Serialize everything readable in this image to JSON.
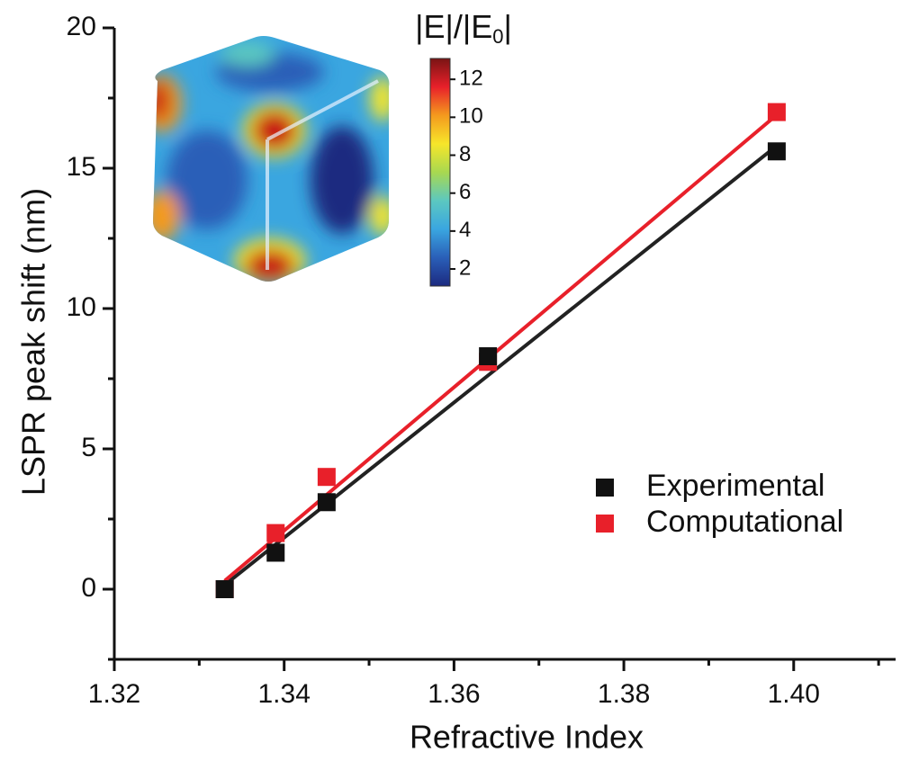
{
  "chart_data": {
    "type": "scatter",
    "xlabel": "Refractive Index",
    "ylabel": "LSPR peak shift (nm)",
    "xlim": [
      1.32,
      1.412
    ],
    "ylim": [
      -2.5,
      20
    ],
    "xticks": [
      1.32,
      1.34,
      1.36,
      1.38,
      {
        "value": 1.4,
        "label": "1.40"
      }
    ],
    "yticks": [
      0,
      5,
      10,
      15,
      20
    ],
    "xminorticks": [
      1.33,
      1.35,
      1.37,
      1.39,
      1.41
    ],
    "yminorticks": [
      -2.5,
      2.5,
      7.5,
      12.5,
      17.5
    ],
    "x": [
      1.333,
      1.339,
      1.345,
      1.364,
      1.398
    ],
    "series": [
      {
        "name": "Computational",
        "color": "#e8202a",
        "values": [
          0,
          2.0,
          4.0,
          8.1,
          17.0
        ]
      },
      {
        "name": "Experimental",
        "color": "#111111",
        "values": [
          0,
          1.3,
          3.1,
          8.3,
          15.6
        ]
      }
    ],
    "fits": [
      {
        "color": "#222222",
        "x": [
          1.333,
          1.398
        ],
        "y": [
          0.15,
          15.8
        ]
      },
      {
        "color": "#e8202a",
        "x": [
          1.333,
          1.398
        ],
        "y": [
          0.3,
          16.9
        ]
      }
    ],
    "legend": "right",
    "colorbar": {
      "title": "|E|/|E",
      "title_sub": "0",
      "title_end": "|",
      "lim": [
        1.1,
        13.1
      ],
      "ticks": [
        2,
        4,
        6,
        8,
        10,
        12
      ],
      "colors": [
        "#1c2a80",
        "#2a5fb8",
        "#3aa6e0",
        "#5cc8c0",
        "#a8d850",
        "#f6e62a",
        "#f49a1e",
        "#e8202a",
        "#7a1414"
      ]
    }
  }
}
